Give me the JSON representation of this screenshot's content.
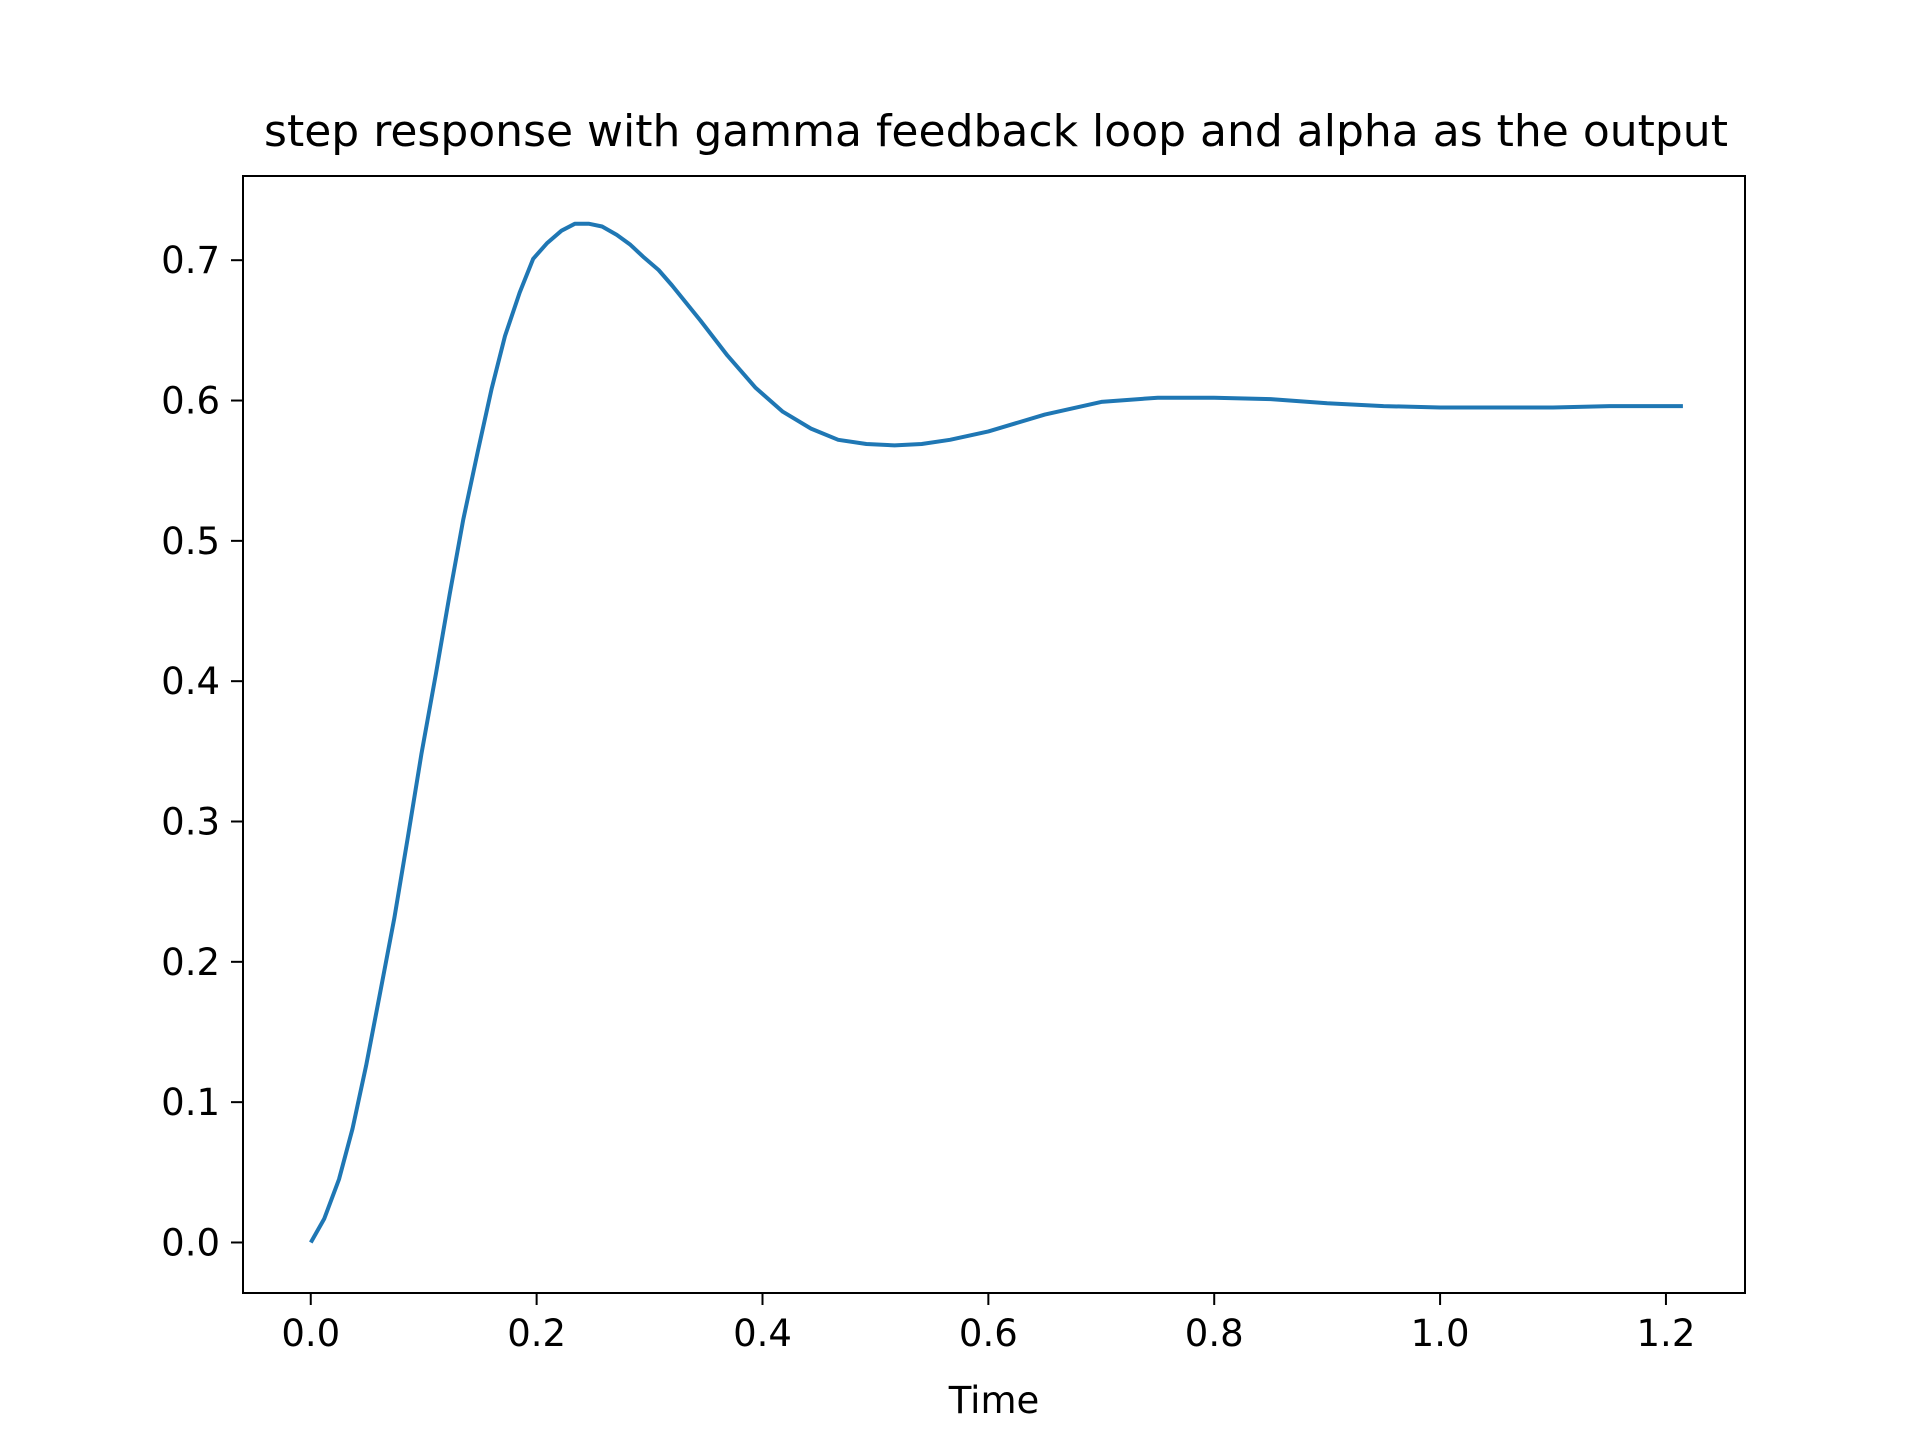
{
  "chart_data": {
    "type": "line",
    "title": "step response with gamma feedback loop and alpha as the output",
    "xlabel": "Time",
    "ylabel": "",
    "xlim": [
      -0.06,
      1.27
    ],
    "ylim": [
      -0.036,
      0.76
    ],
    "grid": false,
    "legend": "none",
    "xticks": [
      0.0,
      0.2,
      0.4,
      0.6,
      0.8,
      1.0,
      1.2
    ],
    "xtick_labels": [
      "0.0",
      "0.2",
      "0.4",
      "0.6",
      "0.8",
      "1.0",
      "1.2"
    ],
    "yticks": [
      0.0,
      0.1,
      0.2,
      0.3,
      0.4,
      0.5,
      0.6,
      0.7
    ],
    "ytick_labels": [
      "0.0",
      "0.1",
      "0.2",
      "0.3",
      "0.4",
      "0.5",
      "0.6",
      "0.7"
    ],
    "series": [
      {
        "color": "#1f77b4",
        "x": [
          0.0,
          0.012,
          0.025,
          0.037,
          0.049,
          0.061,
          0.074,
          0.086,
          0.098,
          0.111,
          0.123,
          0.135,
          0.148,
          0.16,
          0.172,
          0.185,
          0.197,
          0.209,
          0.222,
          0.234,
          0.246,
          0.258,
          0.271,
          0.283,
          0.295,
          0.308,
          0.32,
          0.345,
          0.369,
          0.394,
          0.418,
          0.443,
          0.467,
          0.492,
          0.517,
          0.541,
          0.566,
          0.6,
          0.65,
          0.7,
          0.75,
          0.8,
          0.85,
          0.9,
          0.95,
          1.0,
          1.05,
          1.1,
          1.15,
          1.2,
          1.215
        ],
        "y": [
          0.0,
          0.017,
          0.045,
          0.081,
          0.126,
          0.176,
          0.231,
          0.289,
          0.348,
          0.406,
          0.462,
          0.515,
          0.564,
          0.608,
          0.646,
          0.677,
          0.701,
          0.712,
          0.721,
          0.726,
          0.726,
          0.724,
          0.718,
          0.711,
          0.702,
          0.693,
          0.682,
          0.657,
          0.632,
          0.609,
          0.592,
          0.58,
          0.572,
          0.569,
          0.568,
          0.569,
          0.572,
          0.578,
          0.59,
          0.599,
          0.602,
          0.602,
          0.601,
          0.598,
          0.596,
          0.595,
          0.595,
          0.595,
          0.596,
          0.596,
          0.596
        ]
      }
    ]
  }
}
